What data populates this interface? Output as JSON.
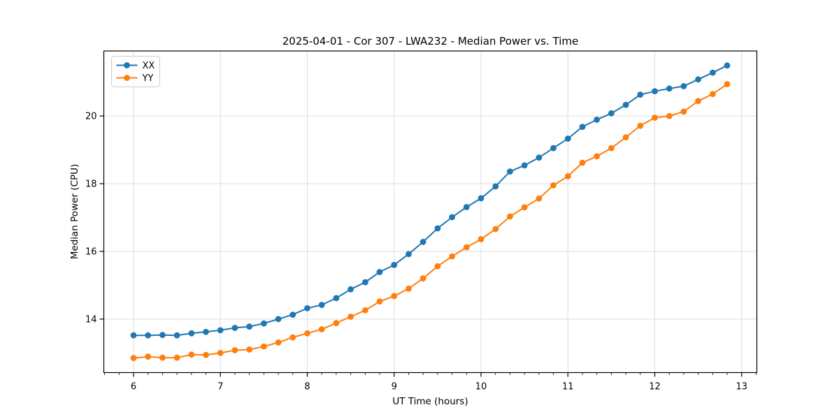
{
  "chart_data": {
    "type": "line",
    "title": "2025-04-01 - Cor 307 - LWA232 - Median Power vs. Time",
    "xlabel": "UT Time (hours)",
    "ylabel": "Median Power (CPU)",
    "xlim": [
      5.658,
      13.175
    ],
    "ylim": [
      12.42,
      21.92
    ],
    "x_major_ticks": [
      6,
      7,
      8,
      9,
      10,
      11,
      12,
      13
    ],
    "x_tick_labels": [
      "6",
      "7",
      "8",
      "9",
      "10",
      "11",
      "12",
      "13"
    ],
    "y_major_ticks": [
      14,
      16,
      18,
      20
    ],
    "y_tick_labels": [
      "14",
      "16",
      "18",
      "20"
    ],
    "x_minor_interval_hours": 0.16667,
    "grid": true,
    "legend_position": "upper-left",
    "background_color": "#ffffff",
    "grid_color": "#dddddd",
    "x": [
      6.0,
      6.167,
      6.333,
      6.5,
      6.667,
      6.833,
      7.0,
      7.167,
      7.333,
      7.5,
      7.667,
      7.833,
      8.0,
      8.167,
      8.333,
      8.5,
      8.667,
      8.833,
      9.0,
      9.167,
      9.333,
      9.5,
      9.667,
      9.833,
      10.0,
      10.167,
      10.333,
      10.5,
      10.667,
      10.833,
      11.0,
      11.167,
      11.333,
      11.5,
      11.667,
      11.833,
      12.0,
      12.167,
      12.333,
      12.5,
      12.667,
      12.833
    ],
    "series": [
      {
        "name": "XX",
        "color": "#1f77b4",
        "marker": "circle",
        "values": [
          13.52,
          13.52,
          13.53,
          13.52,
          13.58,
          13.62,
          13.67,
          13.74,
          13.78,
          13.87,
          14.0,
          14.13,
          14.32,
          14.42,
          14.62,
          14.88,
          15.09,
          15.39,
          15.6,
          15.92,
          16.28,
          16.68,
          17.01,
          17.31,
          17.57,
          17.92,
          18.36,
          18.54,
          18.77,
          19.05,
          19.33,
          19.68,
          19.89,
          20.08,
          20.33,
          20.63,
          20.73,
          20.81,
          20.88,
          21.08,
          21.28,
          21.49
        ]
      },
      {
        "name": "YY",
        "color": "#ff7f0e",
        "marker": "circle",
        "values": [
          12.85,
          12.89,
          12.86,
          12.86,
          12.95,
          12.94,
          13.0,
          13.08,
          13.1,
          13.19,
          13.31,
          13.46,
          13.58,
          13.7,
          13.88,
          14.07,
          14.26,
          14.52,
          14.68,
          14.9,
          15.2,
          15.56,
          15.85,
          16.12,
          16.36,
          16.66,
          17.03,
          17.3,
          17.56,
          17.95,
          18.22,
          18.62,
          18.81,
          19.05,
          19.37,
          19.71,
          19.95,
          20.0,
          20.13,
          20.44,
          20.65,
          20.94
        ]
      }
    ]
  }
}
